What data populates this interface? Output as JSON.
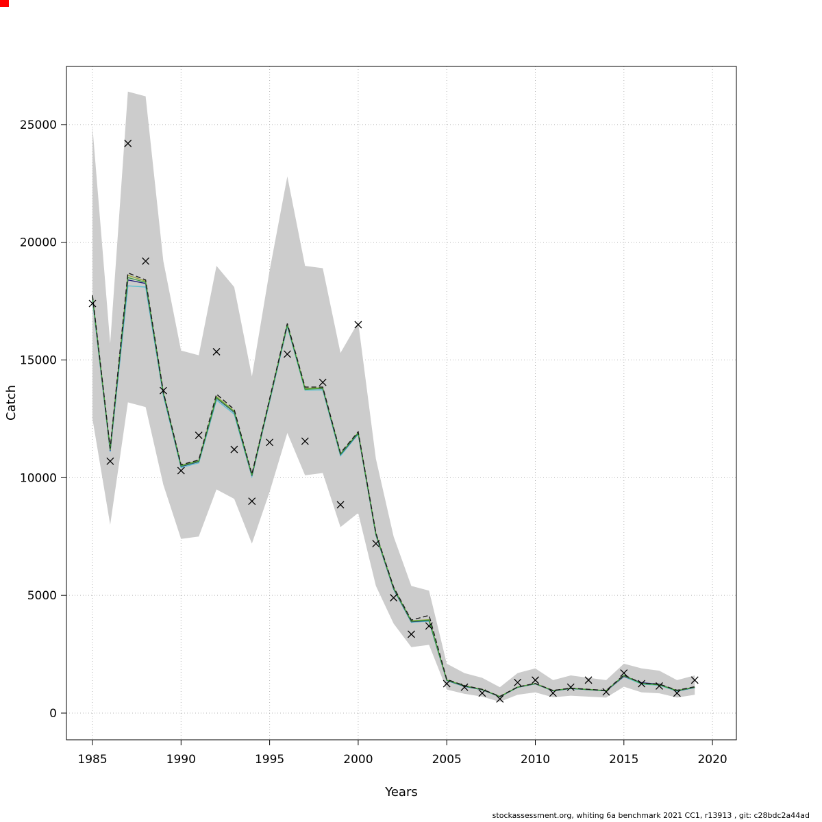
{
  "page": {
    "footer": "stockassessment.org, whiting 6a benchmark 2021 CC1, r13913 , git: c28bdc2a44ad",
    "background": "#ffffff",
    "artifact_color": "#ff0000"
  },
  "chart_data": {
    "type": "line",
    "title": "",
    "xlabel": "Years",
    "ylabel": "Catch",
    "xlim": [
      1983.53,
      2021.35
    ],
    "ylim": [
      -1135,
      27470
    ],
    "xticks": [
      1985,
      1990,
      1995,
      2000,
      2005,
      2010,
      2015,
      2020
    ],
    "yticks": [
      0,
      5000,
      10000,
      15000,
      20000,
      25000
    ],
    "grid": "dotted",
    "grid_color": "#b4b4b4",
    "legend": "none",
    "band_color": "#cccccc",
    "years": [
      1985,
      1986,
      1987,
      1988,
      1989,
      1990,
      1991,
      1992,
      1993,
      1994,
      1995,
      1996,
      1997,
      1998,
      1999,
      2000,
      2001,
      2002,
      2003,
      2004,
      2005,
      2006,
      2007,
      2008,
      2009,
      2010,
      2011,
      2012,
      2013,
      2014,
      2015,
      2016,
      2017,
      2018,
      2019
    ],
    "band_upper": [
      24900,
      15700,
      26400,
      26200,
      19200,
      15400,
      15200,
      19000,
      18100,
      14300,
      18800,
      22800,
      19000,
      18900,
      15300,
      16600,
      10800,
      7500,
      5400,
      5200,
      2100,
      1700,
      1500,
      1100,
      1700,
      1900,
      1400,
      1600,
      1500,
      1400,
      2100,
      1900,
      1800,
      1400,
      1600
    ],
    "band_lower": [
      12500,
      8000,
      13200,
      13000,
      9700,
      7400,
      7500,
      9500,
      9100,
      7200,
      9400,
      11900,
      10100,
      10200,
      7900,
      8500,
      5400,
      3800,
      2800,
      2900,
      1000,
      820,
      700,
      480,
      780,
      880,
      670,
      740,
      700,
      660,
      1120,
      880,
      840,
      660,
      780
    ],
    "series": [
      {
        "name": "run-teal",
        "color": "#5bc0cf",
        "dash": "",
        "values": [
          17550,
          11100,
          18150,
          18100,
          13500,
          10430,
          10630,
          13300,
          12700,
          10050,
          13230,
          16430,
          13720,
          13730,
          10930,
          11850,
          7560,
          5260,
          3860,
          3900,
          1380,
          1130,
          990,
          690,
          1090,
          1240,
          940,
          1040,
          990,
          940,
          1550,
          1230,
          1180,
          930,
          1080
        ]
      },
      {
        "name": "run-navy",
        "color": "#1f1f7a",
        "dash": "",
        "values": [
          17650,
          11150,
          18400,
          18250,
          13570,
          10480,
          10680,
          13380,
          12780,
          10080,
          13280,
          16480,
          13780,
          13780,
          10980,
          11880,
          7580,
          5280,
          3880,
          3930,
          1390,
          1140,
          995,
          695,
          1095,
          1245,
          945,
          1045,
          995,
          945,
          1560,
          1290,
          1230,
          940,
          1090
        ]
      },
      {
        "name": "run-olive",
        "color": "#9aa83a",
        "dash": "",
        "values": [
          17680,
          11180,
          18600,
          18350,
          13620,
          10520,
          10720,
          13450,
          12830,
          10120,
          13320,
          16520,
          13800,
          13820,
          11010,
          11920,
          7620,
          5320,
          3920,
          3970,
          1410,
          1160,
          1005,
          705,
          1105,
          1255,
          955,
          1055,
          1005,
          955,
          1590,
          1255,
          1210,
          955,
          1105
        ]
      },
      {
        "name": "run-green",
        "color": "#3da03d",
        "dash": "",
        "values": [
          17700,
          11200,
          18500,
          18300,
          13600,
          10500,
          10700,
          13400,
          12800,
          10100,
          13300,
          16500,
          13750,
          13800,
          11000,
          11900,
          7600,
          5300,
          3900,
          3950,
          1400,
          1150,
          1000,
          700,
          1100,
          1250,
          950,
          1050,
          1000,
          950,
          1600,
          1250,
          1200,
          950,
          1100
        ]
      },
      {
        "name": "fit-dashed-black",
        "color": "#1a1a1a",
        "dash": "7,4",
        "values": [
          17750,
          11250,
          18700,
          18400,
          13650,
          10550,
          10750,
          13550,
          12900,
          10150,
          13350,
          16550,
          13850,
          13850,
          11050,
          11950,
          7650,
          5350,
          3950,
          4150,
          1430,
          1170,
          1010,
          710,
          1110,
          1260,
          960,
          1060,
          1010,
          960,
          1620,
          1270,
          1230,
          970,
          1120
        ]
      }
    ],
    "observed": {
      "name": "observed-catch",
      "marker": "x",
      "color": "#000000",
      "values": [
        17400,
        10700,
        24200,
        19200,
        13700,
        10300,
        11800,
        15350,
        11200,
        9000,
        11500,
        15250,
        11550,
        14050,
        8850,
        16500,
        7200,
        4900,
        3350,
        3700,
        1250,
        1100,
        850,
        600,
        1300,
        1400,
        850,
        1100,
        1400,
        900,
        1700,
        1250,
        1150,
        850,
        1400
      ]
    }
  }
}
